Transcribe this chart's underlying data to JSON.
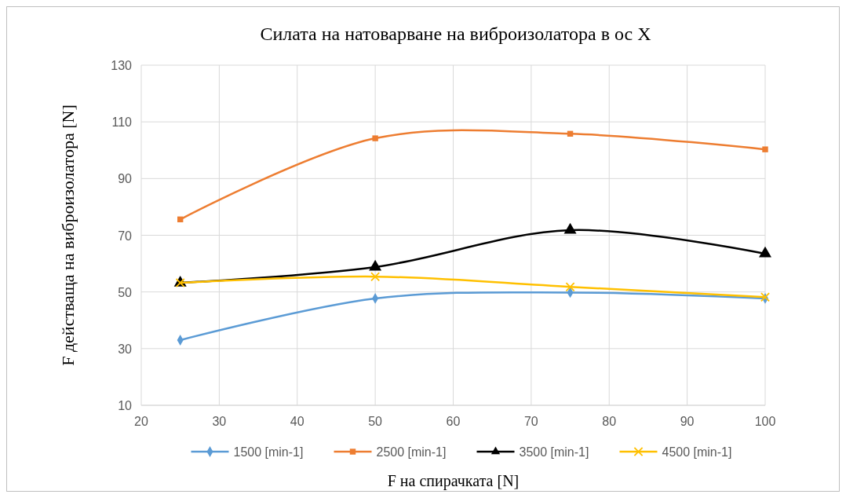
{
  "chart_data": {
    "type": "line",
    "title": "Силата на натоварване на виброизолатора в ос X",
    "xlabel": "F на спирачката  [N]",
    "ylabel": "F действаща на виброизолатора [N]",
    "x": [
      25,
      50,
      75,
      100
    ],
    "series": [
      {
        "name": "1500 [min-1]",
        "color": "#5b9bd5",
        "marker": "diamond",
        "values": [
          33,
          47.7,
          49.8,
          47.7
        ]
      },
      {
        "name": "2500 [min-1]",
        "color": "#ed7d31",
        "marker": "square",
        "values": [
          75.6,
          104.2,
          105.8,
          100.3
        ]
      },
      {
        "name": "3500 [min-1]",
        "color": "#000000",
        "marker": "triangle",
        "values": [
          53.2,
          58.8,
          71.8,
          63.5
        ]
      },
      {
        "name": "4500 [min-1]",
        "color": "#ffc000",
        "marker": "cross",
        "values": [
          53.2,
          55.4,
          51.8,
          48.2
        ]
      }
    ],
    "xlim": [
      20,
      100
    ],
    "xticks": [
      20,
      30,
      40,
      50,
      60,
      70,
      80,
      90,
      100
    ],
    "ylim": [
      10,
      130
    ],
    "yticks": [
      10,
      30,
      50,
      70,
      90,
      110,
      130
    ],
    "grid": true,
    "legend": "bottom",
    "line_style": "solid"
  }
}
